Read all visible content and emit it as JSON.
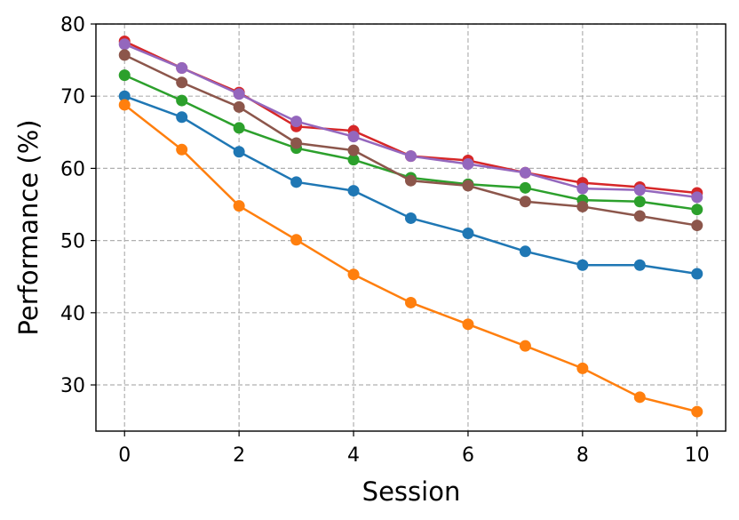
{
  "chart_data": {
    "type": "line",
    "x_label": "Session",
    "y_label": "Performance (%)",
    "x": [
      0,
      1,
      2,
      3,
      4,
      5,
      6,
      7,
      8,
      9,
      10
    ],
    "series": [
      {
        "color": "#1f77b4",
        "values": [
          70,
          67.1,
          62.3,
          58.1,
          56.9,
          53.1,
          51.0,
          48.5,
          46.6,
          46.6,
          45.4
        ]
      },
      {
        "color": "#ff7f0e",
        "values": [
          68.8,
          62.6,
          54.8,
          50.1,
          45.3,
          41.4,
          38.4,
          35.4,
          32.3,
          28.3,
          26.3
        ]
      },
      {
        "color": "#2ca02c",
        "values": [
          72.9,
          69.4,
          65.6,
          62.8,
          61.2,
          58.7,
          57.8,
          57.3,
          55.6,
          55.4,
          54.3
        ]
      },
      {
        "color": "#d62728",
        "values": [
          77.6,
          73.9,
          70.5,
          65.8,
          65.2,
          61.7,
          61.1,
          59.4,
          58.0,
          57.4,
          56.6
        ]
      },
      {
        "color": "#9467bd",
        "values": [
          77.2,
          73.9,
          70.3,
          66.5,
          64.4,
          61.7,
          60.6,
          59.4,
          57.2,
          57.0,
          56.0
        ]
      },
      {
        "color": "#8c564b",
        "values": [
          75.7,
          71.9,
          68.5,
          63.5,
          62.5,
          58.3,
          57.6,
          55.4,
          54.7,
          53.4,
          52.1
        ]
      }
    ],
    "xlim": [
      -0.5,
      10.5
    ],
    "xticks": [
      0,
      2,
      4,
      6,
      8,
      10
    ],
    "ylim": [
      23.6,
      80
    ],
    "yticks": [
      30,
      40,
      50,
      60,
      70,
      80
    ],
    "grid": true
  }
}
